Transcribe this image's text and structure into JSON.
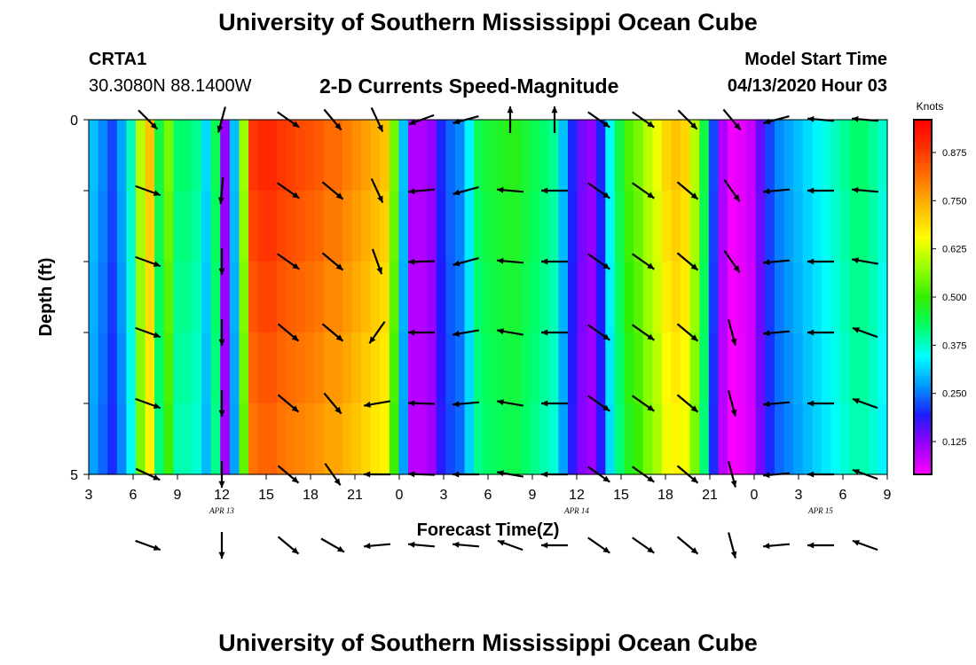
{
  "header": {
    "title": "University of Southern Mississippi Ocean Cube",
    "station": "CRTA1",
    "coords": "30.3080N 88.1400W",
    "subtitle": "2-D Currents Speed-Magnitude",
    "start_label": "Model Start Time",
    "start_value": "04/13/2020 Hour 03"
  },
  "footer": {
    "title": "University of Southern Mississippi Ocean Cube"
  },
  "chart_data": {
    "type": "heatmap",
    "title": "2-D Currents Speed-Magnitude",
    "xlabel": "Forecast Time(Z)",
    "ylabel": "Depth (ft)",
    "x_tick_labels": [
      "3",
      "6",
      "9",
      "12",
      "15",
      "18",
      "21",
      "0",
      "3",
      "6",
      "9",
      "12",
      "15",
      "18",
      "21",
      "0",
      "3",
      "6",
      "9"
    ],
    "date_labels": [
      {
        "label": "APR 13",
        "at_tick": 3
      },
      {
        "label": "APR 14",
        "at_tick": 11
      },
      {
        "label": "APR 15",
        "at_tick": 16.5
      }
    ],
    "y_tick_labels": [
      "0",
      "5"
    ],
    "ylim": [
      0,
      5
    ],
    "xlim_hours": [
      3,
      57
    ],
    "colorbar": {
      "title": "Knots",
      "min": 0.04,
      "max": 0.96,
      "ticks": [
        "0.125",
        "0.250",
        "0.375",
        "0.500",
        "0.625",
        "0.750",
        "0.875"
      ],
      "tick_values": [
        0.125,
        0.25,
        0.375,
        0.5,
        0.625,
        0.75,
        0.875
      ],
      "colors": [
        "#ff00ff",
        "#9900ff",
        "#1c1cff",
        "#0099ff",
        "#00ffff",
        "#00ff66",
        "#33ee00",
        "#99ff00",
        "#ffff00",
        "#ffbb00",
        "#ff7700",
        "#ff3300",
        "#ff0000"
      ]
    },
    "speed_knots_by_hour": [
      0.3,
      0.26,
      0.22,
      0.28,
      0.38,
      0.6,
      0.72,
      0.45,
      0.55,
      0.42,
      0.42,
      0.4,
      0.32,
      0.44,
      0.12,
      0.3,
      0.58,
      0.88,
      0.9,
      0.9,
      0.88,
      0.87,
      0.86,
      0.85,
      0.84,
      0.82,
      0.82,
      0.8,
      0.78,
      0.76,
      0.74,
      0.72,
      0.55,
      0.3,
      0.1,
      0.1,
      0.12,
      0.2,
      0.24,
      0.26,
      0.34,
      0.44,
      0.46,
      0.47,
      0.48,
      0.48,
      0.46,
      0.44,
      0.42,
      0.4,
      0.3,
      0.2,
      0.14,
      0.12,
      0.2,
      0.35,
      0.45,
      0.52,
      0.55,
      0.6,
      0.64,
      0.7,
      0.72,
      0.7,
      0.6,
      0.45,
      0.22,
      0.1,
      0.05,
      0.06,
      0.08,
      0.15,
      0.22,
      0.26,
      0.28,
      0.3,
      0.32,
      0.34,
      0.36,
      0.38,
      0.4,
      0.42,
      0.42,
      0.4,
      0.37
    ],
    "vectors": [
      {
        "hour": 7.0,
        "dirs": [
          135,
          110,
          110,
          110,
          110,
          115,
          110
        ]
      },
      {
        "hour": 12.0,
        "dirs": [
          195,
          185,
          180,
          180,
          180,
          180,
          180
        ]
      },
      {
        "hour": 16.5,
        "dirs": [
          125,
          125,
          125,
          130,
          130,
          130,
          130
        ]
      },
      {
        "hour": 19.5,
        "dirs": [
          140,
          130,
          130,
          130,
          140,
          145,
          120
        ]
      },
      {
        "hour": 22.5,
        "dirs": [
          155,
          155,
          160,
          215,
          260,
          270,
          265
        ]
      },
      {
        "hour": 25.5,
        "dirs": [
          250,
          265,
          268,
          270,
          272,
          272,
          275
        ]
      },
      {
        "hour": 28.5,
        "dirs": [
          255,
          255,
          255,
          260,
          265,
          270,
          275
        ]
      },
      {
        "hour": 31.5,
        "dirs": [
          0,
          275,
          275,
          280,
          280,
          280,
          290
        ]
      },
      {
        "hour": 34.5,
        "dirs": [
          0,
          270,
          270,
          270,
          270,
          270,
          270
        ]
      },
      {
        "hour": 37.5,
        "dirs": [
          125,
          125,
          125,
          125,
          125,
          125,
          125
        ]
      },
      {
        "hour": 40.5,
        "dirs": [
          125,
          125,
          125,
          125,
          125,
          125,
          125
        ]
      },
      {
        "hour": 43.5,
        "dirs": [
          135,
          130,
          130,
          130,
          130,
          130,
          130
        ]
      },
      {
        "hour": 46.5,
        "dirs": [
          140,
          145,
          145,
          165,
          165,
          165,
          165
        ]
      },
      {
        "hour": 49.5,
        "dirs": [
          255,
          265,
          265,
          265,
          265,
          265,
          265
        ]
      },
      {
        "hour": 52.5,
        "dirs": [
          275,
          270,
          270,
          270,
          270,
          270,
          270
        ]
      },
      {
        "hour": 55.5,
        "dirs": [
          275,
          275,
          280,
          290,
          290,
          290,
          290
        ]
      }
    ]
  }
}
